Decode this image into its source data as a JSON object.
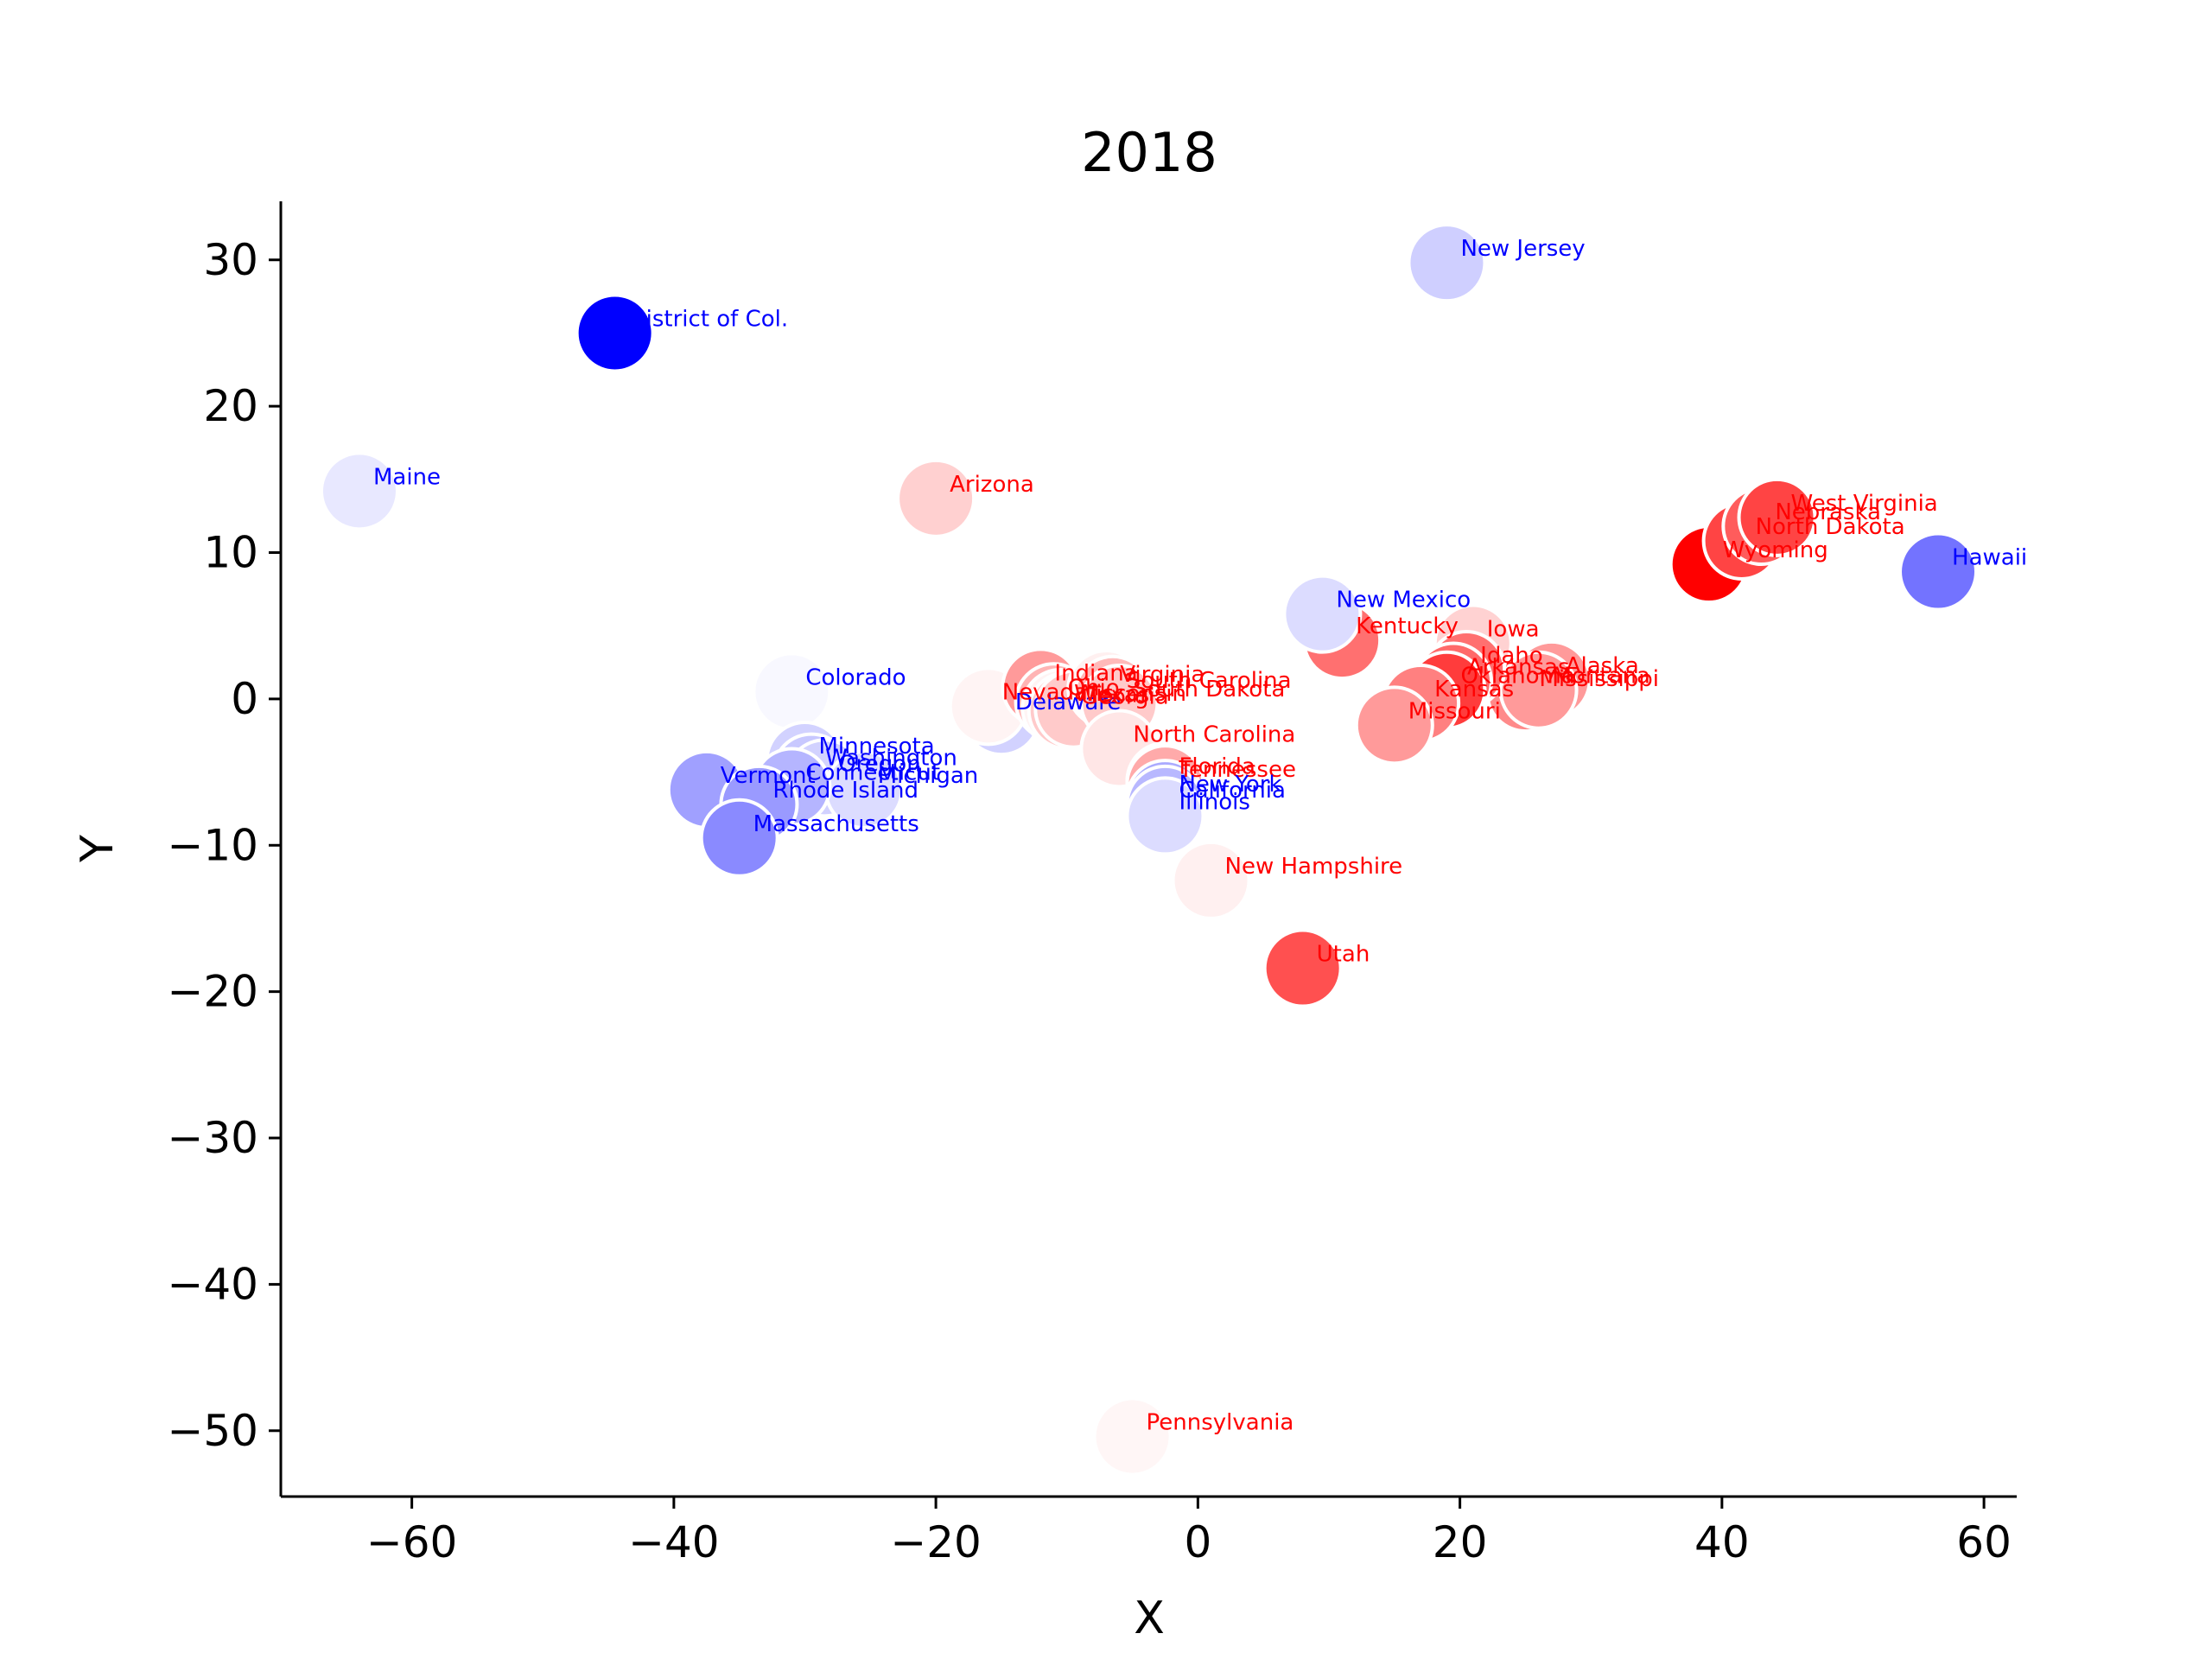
{
  "chart_data": {
    "type": "scatter",
    "title": "2018",
    "xlabel": "X",
    "ylabel": "Y",
    "xlim": [
      -70,
      62.5
    ],
    "ylim": [
      -54.5,
      34
    ],
    "xticks": [
      -60,
      -40,
      -20,
      0,
      20,
      40,
      60
    ],
    "yticks": [
      -50,
      -40,
      -30,
      -20,
      -10,
      0,
      10,
      20,
      30
    ],
    "grid": false,
    "colors": {
      "blue": "#0000ff",
      "red": "#ff0000",
      "tick_text": "#000000",
      "marker_edge": "#ffffff"
    },
    "points": [
      {
        "label": "Wyoming",
        "x": 39,
        "y": 9.2,
        "color": "#ff0000",
        "label_color": "#ff0000"
      },
      {
        "label": "North Dakota",
        "x": 41.5,
        "y": 10.8,
        "color": "#ff4444",
        "label_color": "#ff0000"
      },
      {
        "label": "Nebraska",
        "x": 43,
        "y": 11.8,
        "color": "#ff5c5c",
        "label_color": "#ff0000"
      },
      {
        "label": "West Virginia",
        "x": 44.2,
        "y": 12.4,
        "color": "#ff4444",
        "label_color": "#ff0000"
      },
      {
        "label": "Alaska",
        "x": 27,
        "y": 1.3,
        "color": "#ff9a9a",
        "label_color": "#ff0000"
      },
      {
        "label": "Mississippi",
        "x": 25,
        "y": 0.4,
        "color": "#ff8a8a",
        "label_color": "#ff0000"
      },
      {
        "label": "Montana",
        "x": 26,
        "y": 0.6,
        "color": "#ff9a9a",
        "label_color": "#ff0000"
      },
      {
        "label": "Iowa",
        "x": 21,
        "y": 3.8,
        "color": "#ffd2d2",
        "label_color": "#ff0000"
      },
      {
        "label": "Idaho",
        "x": 20.5,
        "y": 2.0,
        "color": "#ff7070",
        "label_color": "#ff0000"
      },
      {
        "label": "Arkansas",
        "x": 19.5,
        "y": 1.2,
        "color": "#ff6a6a",
        "label_color": "#ff0000"
      },
      {
        "label": "Oklahoma",
        "x": 19,
        "y": 0.6,
        "color": "#ff3c3c",
        "label_color": "#ff0000"
      },
      {
        "label": "Kansas",
        "x": 17,
        "y": -0.3,
        "color": "#ff8080",
        "label_color": "#ff0000"
      },
      {
        "label": "Missouri",
        "x": 15,
        "y": -1.8,
        "color": "#ff9a9a",
        "label_color": "#ff0000"
      },
      {
        "label": "Kentucky",
        "x": 11,
        "y": 4.0,
        "color": "#ff7070",
        "label_color": "#ff0000"
      },
      {
        "label": "New Mexico",
        "x": 9.5,
        "y": 5.8,
        "color": "#dcdcff",
        "label_color": "#0000ff"
      },
      {
        "label": "Hawaii",
        "x": 56.5,
        "y": 8.7,
        "color": "#7373ff",
        "label_color": "#0000ff"
      },
      {
        "label": "New Jersey",
        "x": 19,
        "y": 29.8,
        "color": "#cfcfff",
        "label_color": "#0000ff"
      },
      {
        "label": "District of Col.",
        "x": -44.5,
        "y": 25,
        "color": "#0000ff",
        "label_color": "#0000ff"
      },
      {
        "label": "Maine",
        "x": -64,
        "y": 14.2,
        "color": "#e8e8ff",
        "label_color": "#0000ff"
      },
      {
        "label": "Arizona",
        "x": -20,
        "y": 13.7,
        "color": "#ffd0d0",
        "label_color": "#ff0000"
      },
      {
        "label": "Colorado",
        "x": -31,
        "y": 0.5,
        "color": "#f8f8ff",
        "label_color": "#0000ff"
      },
      {
        "label": "Minnesota",
        "x": -30,
        "y": -4.2,
        "color": "#d2d2ff",
        "label_color": "#0000ff"
      },
      {
        "label": "Washington",
        "x": -29.5,
        "y": -5.0,
        "color": "#c8c8ff",
        "label_color": "#0000ff"
      },
      {
        "label": "Oregon",
        "x": -28.5,
        "y": -5.4,
        "color": "#d2d2ff",
        "label_color": "#0000ff"
      },
      {
        "label": "Michigan",
        "x": -25.5,
        "y": -6.2,
        "color": "#dcdcff",
        "label_color": "#0000ff"
      },
      {
        "label": "Connecticut",
        "x": -31,
        "y": -6.0,
        "color": "#b5b5ff",
        "label_color": "#0000ff"
      },
      {
        "label": "Vermont",
        "x": -37.5,
        "y": -6.2,
        "color": "#a0a0ff",
        "label_color": "#0000ff"
      },
      {
        "label": "Rhode Island",
        "x": -33.5,
        "y": -7.2,
        "color": "#9a9aff",
        "label_color": "#0000ff"
      },
      {
        "label": "Massachusetts",
        "x": -35,
        "y": -9.5,
        "color": "#8a8aff",
        "label_color": "#0000ff"
      },
      {
        "label": "Delaware",
        "x": -15,
        "y": -1.2,
        "color": "#d2d2ff",
        "label_color": "#0000ff"
      },
      {
        "label": "Nevada",
        "x": -16,
        "y": -0.5,
        "color": "#fff4f4",
        "label_color": "#ff0000"
      },
      {
        "label": "Indiana",
        "x": -12,
        "y": 0.8,
        "color": "#ff9a9a",
        "label_color": "#ff0000"
      },
      {
        "label": "Ohio",
        "x": -11,
        "y": -0.2,
        "color": "#ffb4b4",
        "label_color": "#ff0000"
      },
      {
        "label": "Wisconsin",
        "x": -10.5,
        "y": -0.6,
        "color": "#fff4f4",
        "label_color": "#ff0000"
      },
      {
        "label": "Georgia",
        "x": -10,
        "y": -0.8,
        "color": "#ffcaca",
        "label_color": "#ff0000"
      },
      {
        "label": "Texas",
        "x": -9.5,
        "y": -0.7,
        "color": "#ffcaca",
        "label_color": "#ff0000"
      },
      {
        "label": "Virginia",
        "x": -7,
        "y": 0.7,
        "color": "#fff0f0",
        "label_color": "#ff0000"
      },
      {
        "label": "South Carolina",
        "x": -6.5,
        "y": 0.3,
        "color": "#ffbaba",
        "label_color": "#ff0000"
      },
      {
        "label": "South Dakota",
        "x": -6,
        "y": -0.3,
        "color": "#ffcaca",
        "label_color": "#ff0000"
      },
      {
        "label": "North Carolina",
        "x": -6,
        "y": -3.4,
        "color": "#ffe6e6",
        "label_color": "#ff0000"
      },
      {
        "label": "Florida",
        "x": -2.5,
        "y": -5.6,
        "color": "#ff9a9a",
        "label_color": "#ff0000"
      },
      {
        "label": "Tennessee",
        "x": -2.5,
        "y": -5.8,
        "color": "#ffaaaa",
        "label_color": "#ff0000"
      },
      {
        "label": "New York",
        "x": -2.5,
        "y": -6.8,
        "color": "#aaaaff",
        "label_color": "#0000ff"
      },
      {
        "label": "California",
        "x": -2.5,
        "y": -7.2,
        "color": "#b8b8ff",
        "label_color": "#0000ff"
      },
      {
        "label": "Illinois",
        "x": -2.5,
        "y": -8.0,
        "color": "#dcdcff",
        "label_color": "#0000ff"
      },
      {
        "label": "New Hampshire",
        "x": 1,
        "y": -12.4,
        "color": "#fff0f0",
        "label_color": "#ff0000"
      },
      {
        "label": "Utah",
        "x": 8,
        "y": -18.4,
        "color": "#ff5050",
        "label_color": "#ff0000"
      },
      {
        "label": "Pennsylvania",
        "x": -5,
        "y": -50.4,
        "color": "#fff6f6",
        "label_color": "#ff0000"
      }
    ]
  }
}
